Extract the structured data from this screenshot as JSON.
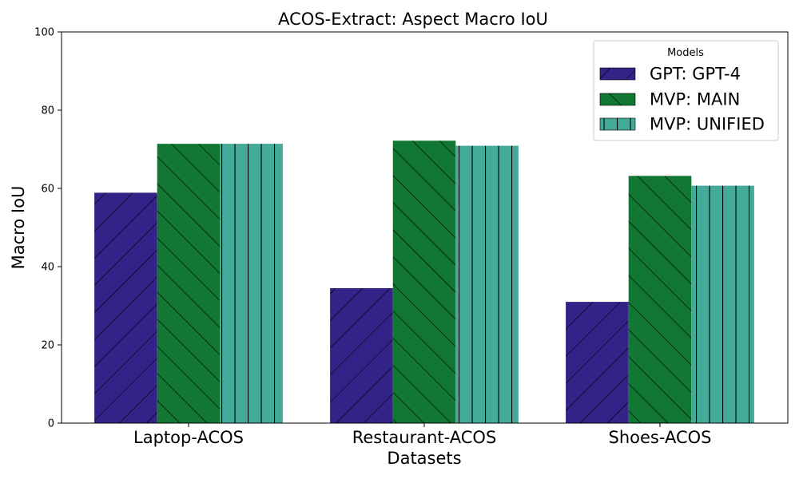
{
  "chart_data": {
    "type": "bar",
    "title": "ACOS-Extract: Aspect Macro IoU",
    "xlabel": "Datasets",
    "ylabel": "Macro IoU",
    "ylim": [
      0,
      100
    ],
    "yticks": [
      0,
      20,
      40,
      60,
      80,
      100
    ],
    "categories": [
      "Laptop-ACOS",
      "Restaurant-ACOS",
      "Shoes-ACOS"
    ],
    "legend": {
      "title": "Models",
      "placement": "top-right"
    },
    "grid": false,
    "series": [
      {
        "name": "GPT: GPT-4",
        "color": "#332288",
        "hatch": "forward-diagonal",
        "values": [
          58.9,
          34.5,
          31.0
        ]
      },
      {
        "name": "MVP: MAIN",
        "color": "#117733",
        "hatch": "back-diagonal",
        "values": [
          71.4,
          72.2,
          63.2
        ]
      },
      {
        "name": "MVP: UNIFIED",
        "color": "#44AA99",
        "hatch": "vertical",
        "values": [
          71.4,
          70.9,
          60.7
        ]
      }
    ]
  }
}
